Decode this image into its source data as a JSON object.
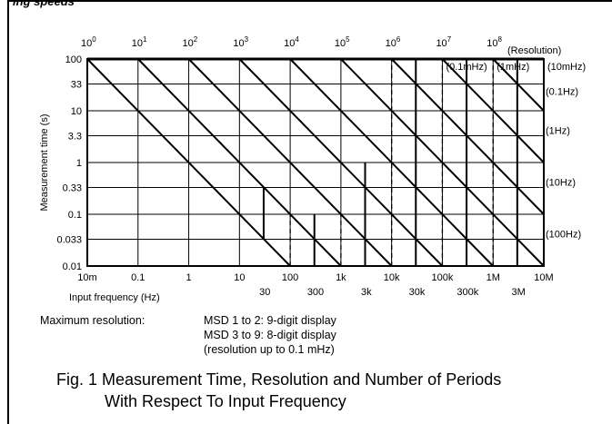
{
  "header_fragment": "ing speeds",
  "chart_data": {
    "type": "line",
    "top_axis_ticks": [
      {
        "base": "10",
        "exp": "0"
      },
      {
        "base": "10",
        "exp": "1"
      },
      {
        "base": "10",
        "exp": "2"
      },
      {
        "base": "10",
        "exp": "3"
      },
      {
        "base": "10",
        "exp": "4"
      },
      {
        "base": "10",
        "exp": "5"
      },
      {
        "base": "10",
        "exp": "6"
      },
      {
        "base": "10",
        "exp": "7"
      },
      {
        "base": "10",
        "exp": "8"
      }
    ],
    "resolution_header": "(Resolution)",
    "resolution_labels": [
      "(0.1mHz)",
      "(1mHz)",
      "(10mHz)",
      "(0.1Hz)",
      "(1Hz)",
      "(10Hz)",
      "(100Hz)"
    ],
    "ylabel": "Measurement time (s)",
    "xlabel": "Input frequency (Hz)",
    "y_ticks": [
      "100",
      "33",
      "10",
      "3.3",
      "1",
      "0.33",
      "0.1",
      "0.033",
      "0.01"
    ],
    "x_ticks_upper": [
      "10m",
      "0.1",
      "1",
      "10",
      "100",
      "1k",
      "10k",
      "100k",
      "1M",
      "10M"
    ],
    "x_ticks_lower": [
      "30",
      "300",
      "3k",
      "30k",
      "300k",
      "3M"
    ],
    "x_scale": "log",
    "y_scale": "log",
    "xlim": [
      "10m",
      "10M"
    ],
    "ylim": [
      "0.01",
      "100"
    ],
    "grid": true,
    "periods_lines": [
      1,
      10,
      100,
      1000,
      10000,
      100000,
      1000000,
      10000000,
      100000000
    ]
  },
  "notes": {
    "label": "Maximum resolution:",
    "line1": "MSD 1 to 2: 9-digit display",
    "line2": "MSD 3 to 9: 8-digit display",
    "line3": "(resolution up to 0.1 mHz)"
  },
  "caption": {
    "line1": "Fig. 1  Measurement Time, Resolution and Number of Periods",
    "line2": "With Respect To Input Frequency"
  }
}
